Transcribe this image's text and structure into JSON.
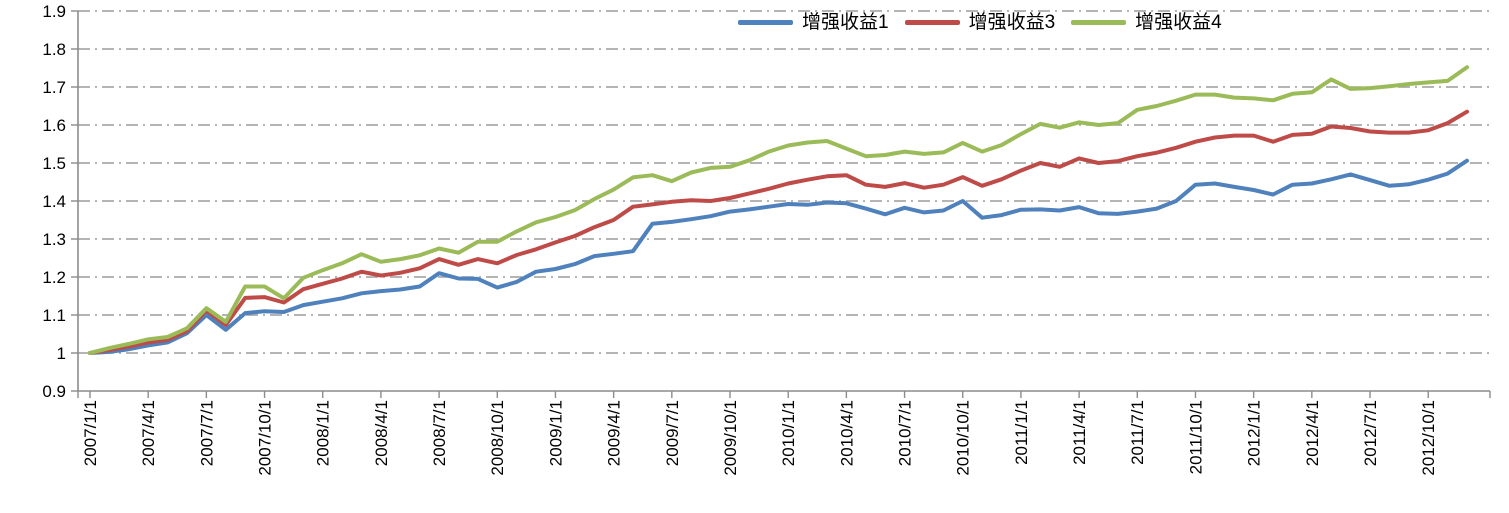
{
  "chart_data": {
    "type": "line",
    "title": "",
    "legend_position": "top",
    "grid": "horizontal dash-dot",
    "colors": {
      "gridline": "#9b9b9b",
      "axis": "#8c8c8c",
      "text": "#000000",
      "background": "#ffffff"
    },
    "x": [
      "2007/1/1",
      "2007/2/1",
      "2007/3/1",
      "2007/4/1",
      "2007/5/1",
      "2007/6/1",
      "2007/7/1",
      "2007/8/1",
      "2007/9/1",
      "2007/10/1",
      "2007/11/1",
      "2007/12/1",
      "2008/1/1",
      "2008/2/1",
      "2008/3/1",
      "2008/4/1",
      "2008/5/1",
      "2008/6/1",
      "2008/7/1",
      "2008/8/1",
      "2008/9/1",
      "2008/10/1",
      "2008/11/1",
      "2008/12/1",
      "2009/1/1",
      "2009/2/1",
      "2009/3/1",
      "2009/4/1",
      "2009/5/1",
      "2009/6/1",
      "2009/7/1",
      "2009/8/1",
      "2009/9/1",
      "2009/10/1",
      "2009/11/1",
      "2009/12/1",
      "2010/1/1",
      "2010/2/1",
      "2010/3/1",
      "2010/4/1",
      "2010/5/1",
      "2010/6/1",
      "2010/7/1",
      "2010/8/1",
      "2010/9/1",
      "2010/10/1",
      "2010/11/1",
      "2010/12/1",
      "2011/1/1",
      "2011/2/1",
      "2011/3/1",
      "2011/4/1",
      "2011/5/1",
      "2011/6/1",
      "2011/7/1",
      "2011/8/1",
      "2011/9/1",
      "2011/10/1",
      "2011/11/1",
      "2011/12/1",
      "2012/1/1",
      "2012/2/1",
      "2012/3/1",
      "2012/4/1",
      "2012/5/1",
      "2012/6/1",
      "2012/7/1",
      "2012/8/1",
      "2012/9/1",
      "2012/10/1",
      "2012/11/1",
      "2012/12/1"
    ],
    "x_tick_labels": [
      "2007/1/1",
      "2007/4/1",
      "2007/7/1",
      "2007/10/1",
      "2008/1/1",
      "2008/4/1",
      "2008/7/1",
      "2008/10/1",
      "2009/1/1",
      "2009/4/1",
      "2009/7/1",
      "2009/10/1",
      "2010/1/1",
      "2010/4/1",
      "2010/7/1",
      "2010/10/1",
      "2011/1/1",
      "2011/4/1",
      "2011/7/1",
      "2011/10/1",
      "2012/1/1",
      "2012/4/1",
      "2012/7/1",
      "2012/10/1"
    ],
    "x_tick_every_n_points": 3,
    "y_axis": {
      "min": 0.9,
      "max": 1.9,
      "step": 0.1,
      "tick_labels": [
        "0.9",
        "1",
        "1.1",
        "1.2",
        "1.3",
        "1.4",
        "1.5",
        "1.6",
        "1.7",
        "1.8",
        "1.9"
      ]
    },
    "series": [
      {
        "name": "增强收益1",
        "color": "#4F81BD",
        "values": [
          1.0,
          1.003,
          1.01,
          1.02,
          1.028,
          1.052,
          1.1,
          1.061,
          1.105,
          1.11,
          1.108,
          1.126,
          1.135,
          1.144,
          1.157,
          1.163,
          1.167,
          1.175,
          1.21,
          1.196,
          1.195,
          1.172,
          1.187,
          1.214,
          1.221,
          1.234,
          1.255,
          1.261,
          1.268,
          1.34,
          1.345,
          1.352,
          1.36,
          1.372,
          1.378,
          1.385,
          1.392,
          1.39,
          1.396,
          1.394,
          1.38,
          1.365,
          1.382,
          1.37,
          1.375,
          1.4,
          1.356,
          1.363,
          1.377,
          1.378,
          1.375,
          1.384,
          1.368,
          1.366,
          1.372,
          1.38,
          1.4,
          1.443,
          1.446,
          1.437,
          1.429,
          1.417,
          1.443,
          1.446,
          1.457,
          1.47,
          1.455,
          1.44,
          1.444,
          1.456,
          1.472,
          1.506
        ]
      },
      {
        "name": "增强收益3",
        "color": "#BE4B48",
        "values": [
          1.0,
          1.008,
          1.017,
          1.028,
          1.035,
          1.058,
          1.112,
          1.074,
          1.145,
          1.147,
          1.133,
          1.168,
          1.182,
          1.196,
          1.214,
          1.204,
          1.211,
          1.223,
          1.247,
          1.232,
          1.247,
          1.236,
          1.258,
          1.273,
          1.291,
          1.308,
          1.331,
          1.35,
          1.385,
          1.391,
          1.398,
          1.402,
          1.4,
          1.408,
          1.42,
          1.432,
          1.446,
          1.456,
          1.465,
          1.468,
          1.443,
          1.437,
          1.447,
          1.435,
          1.443,
          1.463,
          1.44,
          1.457,
          1.48,
          1.5,
          1.49,
          1.512,
          1.5,
          1.505,
          1.518,
          1.527,
          1.54,
          1.556,
          1.567,
          1.572,
          1.572,
          1.556,
          1.574,
          1.577,
          1.596,
          1.592,
          1.583,
          1.58,
          1.58,
          1.586,
          1.605,
          1.635
        ]
      },
      {
        "name": "增强收益4",
        "color": "#9BBB59",
        "values": [
          1.0,
          1.013,
          1.024,
          1.036,
          1.042,
          1.065,
          1.118,
          1.082,
          1.175,
          1.175,
          1.144,
          1.198,
          1.218,
          1.236,
          1.26,
          1.24,
          1.247,
          1.257,
          1.275,
          1.264,
          1.293,
          1.293,
          1.32,
          1.344,
          1.358,
          1.376,
          1.405,
          1.43,
          1.462,
          1.468,
          1.452,
          1.475,
          1.487,
          1.49,
          1.507,
          1.53,
          1.546,
          1.554,
          1.558,
          1.538,
          1.518,
          1.521,
          1.53,
          1.524,
          1.528,
          1.553,
          1.53,
          1.547,
          1.576,
          1.603,
          1.593,
          1.607,
          1.6,
          1.605,
          1.64,
          1.65,
          1.664,
          1.68,
          1.68,
          1.672,
          1.67,
          1.665,
          1.682,
          1.686,
          1.72,
          1.695,
          1.697,
          1.702,
          1.708,
          1.712,
          1.716,
          1.752
        ]
      }
    ]
  }
}
